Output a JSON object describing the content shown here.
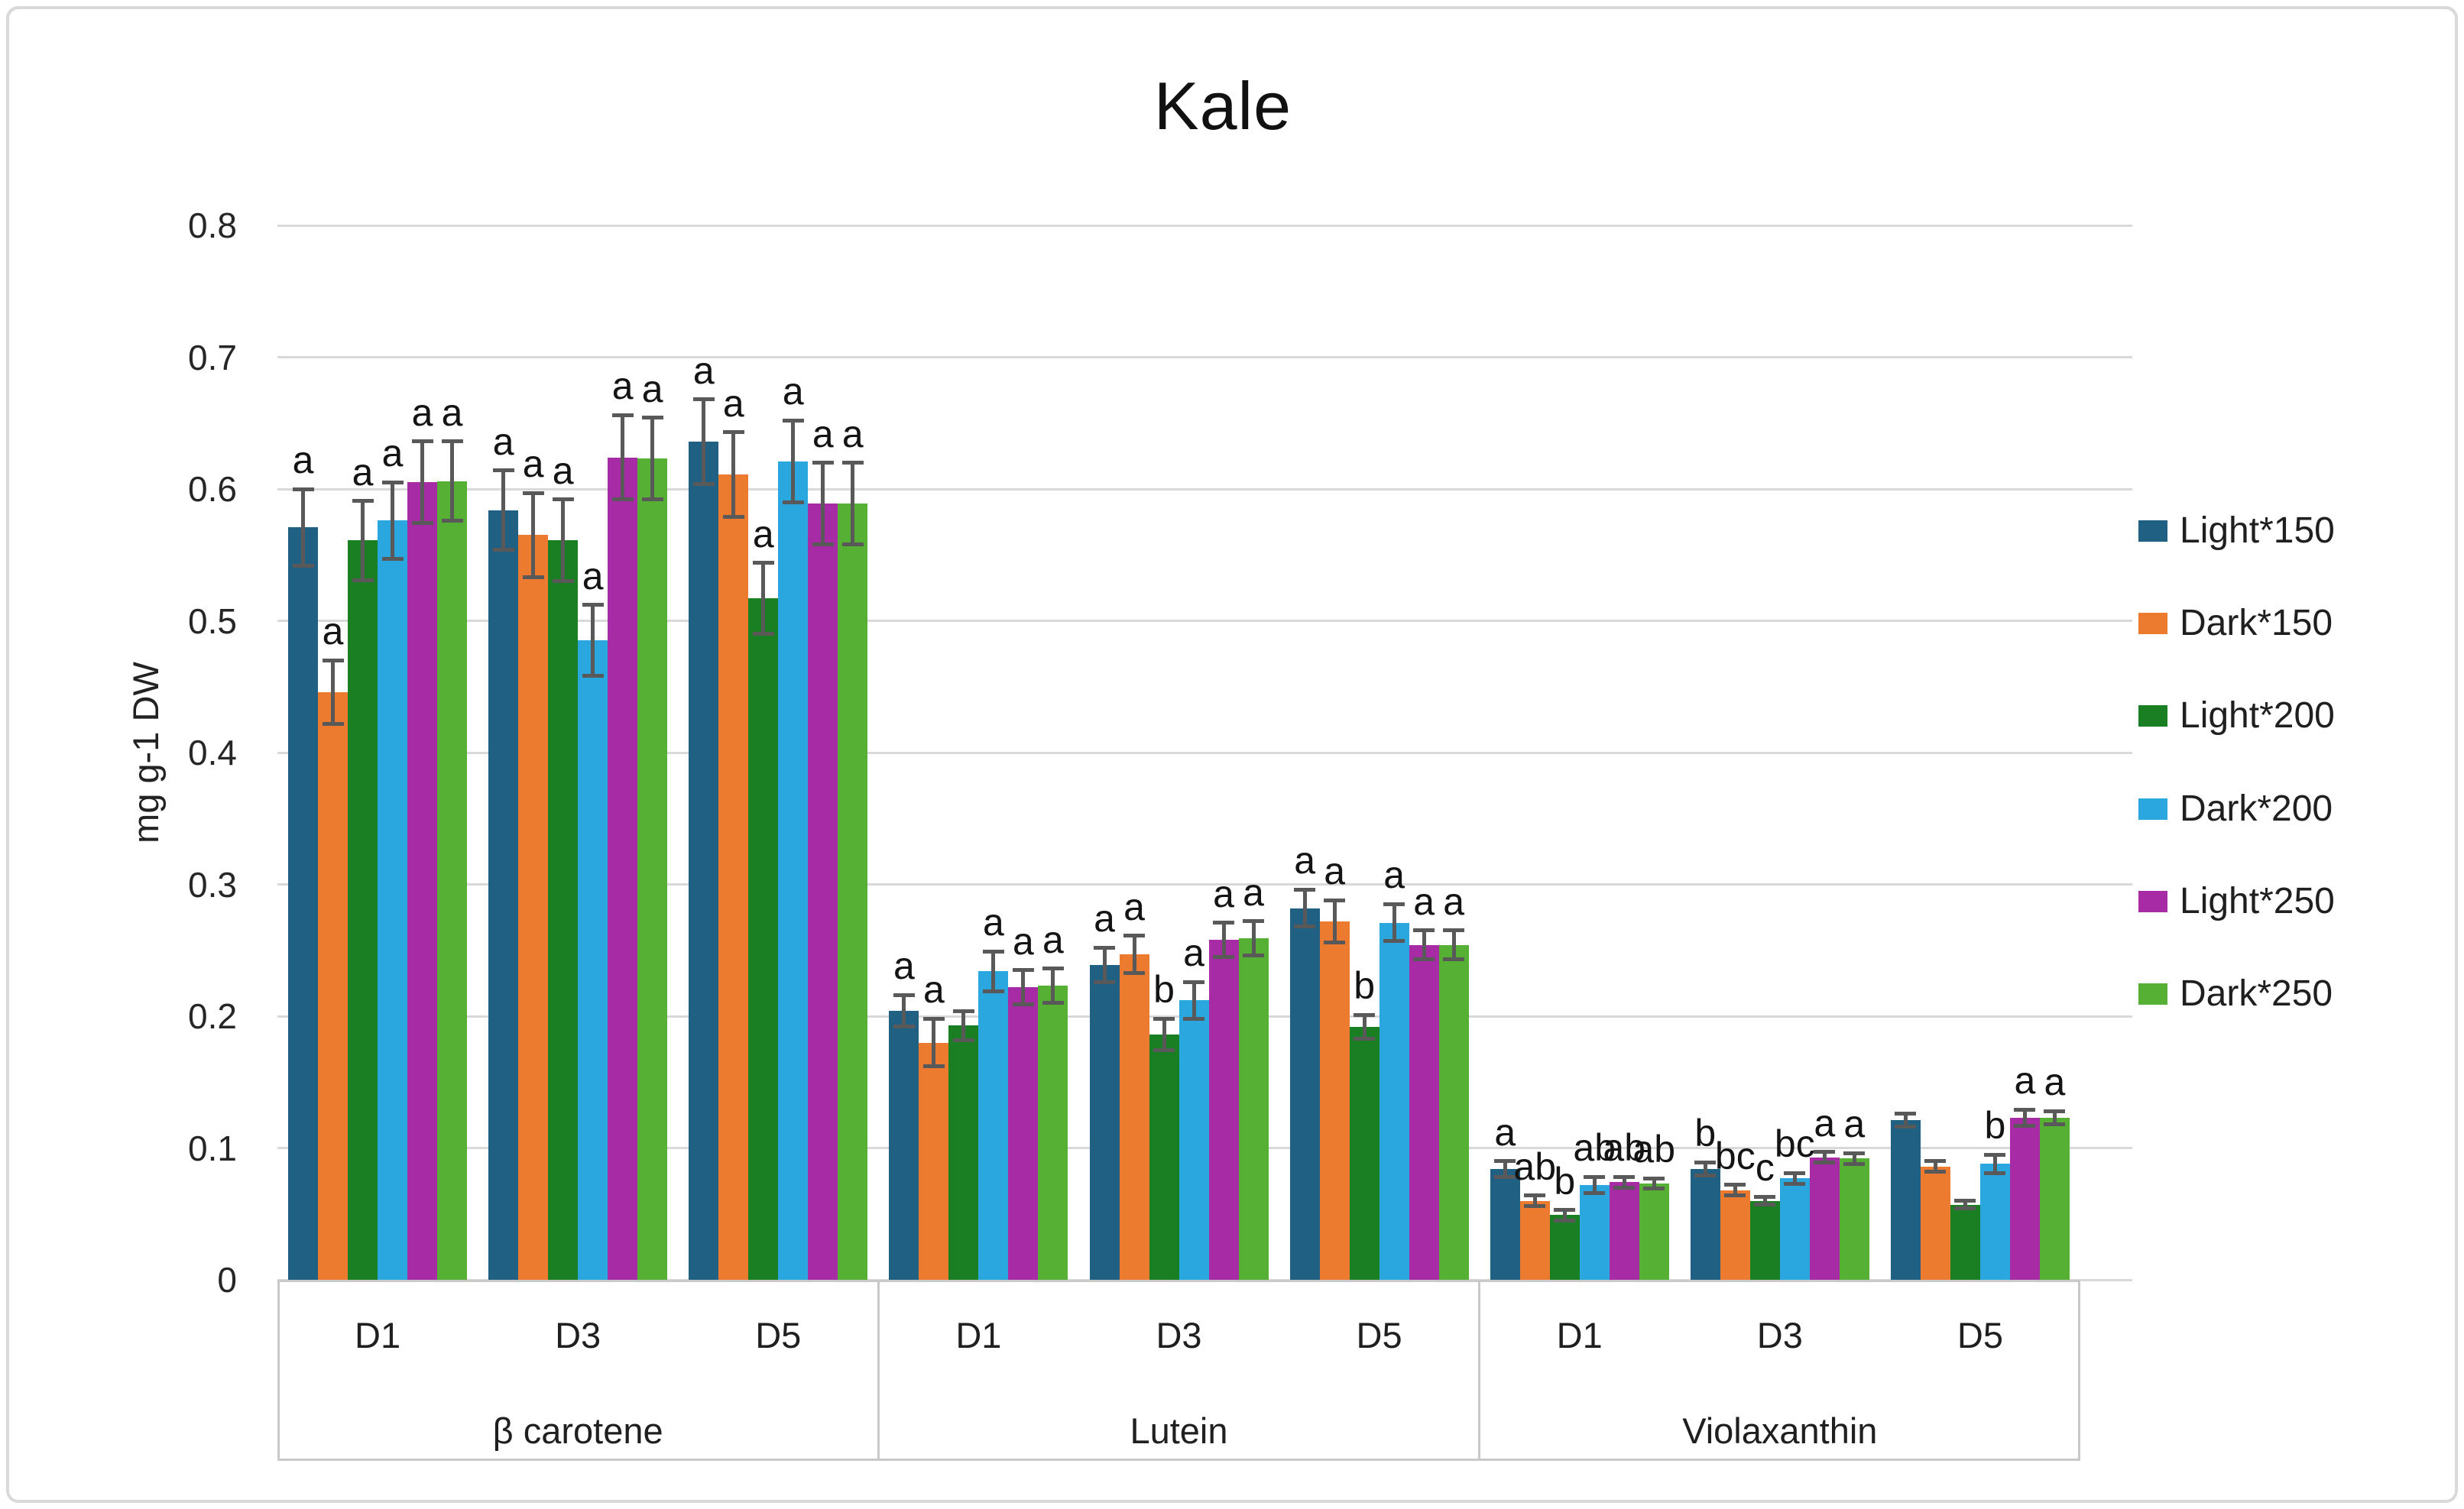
{
  "title": "Kale",
  "y_axis": {
    "label": "mg g-1 DW",
    "ticks": [
      "0.8",
      "0.7",
      "0.6",
      "0.5",
      "0.4",
      "0.3",
      "0.2",
      "0.1",
      "0"
    ]
  },
  "chart_data": {
    "type": "bar",
    "title": "Kale",
    "ylabel": "mg g-1 DW",
    "xlabel": "",
    "ylim": [
      0,
      0.8
    ],
    "grid": true,
    "legend_position": "right",
    "group_labels": [
      "D1",
      "D3",
      "D5"
    ],
    "series": [
      {
        "name": "Light*150",
        "color": "#1F6083"
      },
      {
        "name": "Dark*150",
        "color": "#EC7B30"
      },
      {
        "name": "Light*200",
        "color": "#1A7E23"
      },
      {
        "name": "Dark*200",
        "color": "#2BA7E0"
      },
      {
        "name": "Light*250",
        "color": "#A62BA5"
      },
      {
        "name": "Dark*250",
        "color": "#56B033"
      }
    ],
    "sections": [
      {
        "name": "β carotene",
        "groups": [
          {
            "label": "D1",
            "values": [
              0.571,
              0.446,
              0.561,
              0.576,
              0.605,
              0.606
            ],
            "errors": [
              0.029,
              0.024,
              0.03,
              0.029,
              0.031,
              0.03
            ],
            "letters": [
              "a",
              "a",
              "a",
              "a",
              "a",
              "a"
            ]
          },
          {
            "label": "D3",
            "values": [
              0.584,
              0.565,
              0.561,
              0.485,
              0.624,
              0.623
            ],
            "errors": [
              0.03,
              0.032,
              0.031,
              0.027,
              0.032,
              0.031
            ],
            "letters": [
              "a",
              "a",
              "a",
              "a",
              "a",
              "a"
            ]
          },
          {
            "label": "D5",
            "values": [
              0.636,
              0.611,
              0.517,
              0.621,
              0.589,
              0.589
            ],
            "errors": [
              0.032,
              0.032,
              0.027,
              0.031,
              0.031,
              0.031
            ],
            "letters": [
              "a",
              "a",
              "a",
              "a",
              "a",
              "a"
            ]
          }
        ]
      },
      {
        "name": "Lutein",
        "groups": [
          {
            "label": "D1",
            "values": [
              0.204,
              0.18,
              0.193,
              0.234,
              0.222,
              0.223
            ],
            "errors": [
              0.012,
              0.018,
              0.011,
              0.015,
              0.013,
              0.013
            ],
            "letters": [
              "a",
              "a",
              "",
              "a",
              "a",
              "a"
            ]
          },
          {
            "label": "D3",
            "values": [
              0.239,
              0.247,
              0.186,
              0.212,
              0.258,
              0.259
            ],
            "errors": [
              0.013,
              0.014,
              0.012,
              0.014,
              0.013,
              0.013
            ],
            "letters": [
              "a",
              "a",
              "b",
              "a",
              "a",
              "a"
            ]
          },
          {
            "label": "D5",
            "values": [
              0.282,
              0.272,
              0.192,
              0.271,
              0.254,
              0.254
            ],
            "errors": [
              0.014,
              0.016,
              0.009,
              0.014,
              0.011,
              0.011
            ],
            "letters": [
              "a",
              "a",
              "b",
              "a",
              "a",
              "a"
            ]
          }
        ]
      },
      {
        "name": "Violaxanthin",
        "groups": [
          {
            "label": "D1",
            "values": [
              0.084,
              0.06,
              0.049,
              0.072,
              0.074,
              0.073
            ],
            "errors": [
              0.006,
              0.004,
              0.004,
              0.006,
              0.004,
              0.004
            ],
            "letters": [
              "a",
              "ab",
              "b",
              "ab",
              "ab",
              "ab"
            ]
          },
          {
            "label": "D3",
            "values": [
              0.084,
              0.068,
              0.06,
              0.077,
              0.093,
              0.092
            ],
            "errors": [
              0.005,
              0.004,
              0.003,
              0.004,
              0.004,
              0.004
            ],
            "letters": [
              "b",
              "bc",
              "c",
              "bc",
              "a",
              "a"
            ]
          },
          {
            "label": "D5",
            "values": [
              0.121,
              0.086,
              0.057,
              0.088,
              0.123,
              0.123
            ],
            "errors": [
              0.005,
              0.004,
              0.003,
              0.007,
              0.006,
              0.005
            ],
            "letters": [
              "",
              "",
              "",
              "b",
              "a",
              "a"
            ]
          }
        ]
      }
    ]
  },
  "colors": {
    "gridline": "#D9D9D9",
    "error_bar": "#595959",
    "axis_text": "#262626",
    "band_border": "#C9C9C9",
    "frame_border": "#D8D8D8",
    "letter": "#141414"
  }
}
